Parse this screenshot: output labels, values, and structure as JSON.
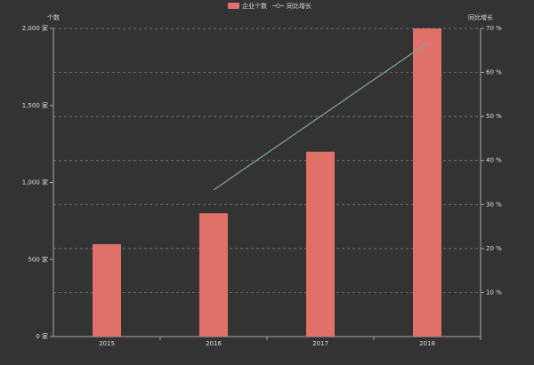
{
  "chart_data": {
    "type": "bar-line",
    "categories": [
      "2015",
      "2016",
      "2017",
      "2018"
    ],
    "series": [
      {
        "name": "企业个数",
        "type": "bar",
        "color": "#e0706a",
        "values": [
          600,
          800,
          1200,
          2000
        ]
      },
      {
        "name": "同比增长",
        "type": "line",
        "axis": "y2",
        "color": "#7fa89f",
        "values": [
          null,
          33.3,
          50,
          66.7
        ]
      }
    ],
    "ylabel": "个数",
    "y2label": "同比增长",
    "ylim": [
      0,
      2000
    ],
    "yticks": [
      {
        "value": 0,
        "label": "0 家"
      },
      {
        "value": 500,
        "label": "500 家"
      },
      {
        "value": 1000,
        "label": "1,000 家"
      },
      {
        "value": 1500,
        "label": "1,500 家"
      },
      {
        "value": 2000,
        "label": "2,000 家"
      }
    ],
    "y2lim": [
      0,
      70
    ],
    "y2ticks": [
      {
        "value": 10,
        "label": "10 %"
      },
      {
        "value": 20,
        "label": "20 %"
      },
      {
        "value": 30,
        "label": "30 %"
      },
      {
        "value": 40,
        "label": "40 %"
      },
      {
        "value": 50,
        "label": "50 %"
      },
      {
        "value": 60,
        "label": "60 %"
      },
      {
        "value": 70,
        "label": "70 %"
      }
    ],
    "grid": true,
    "legend": "top"
  }
}
